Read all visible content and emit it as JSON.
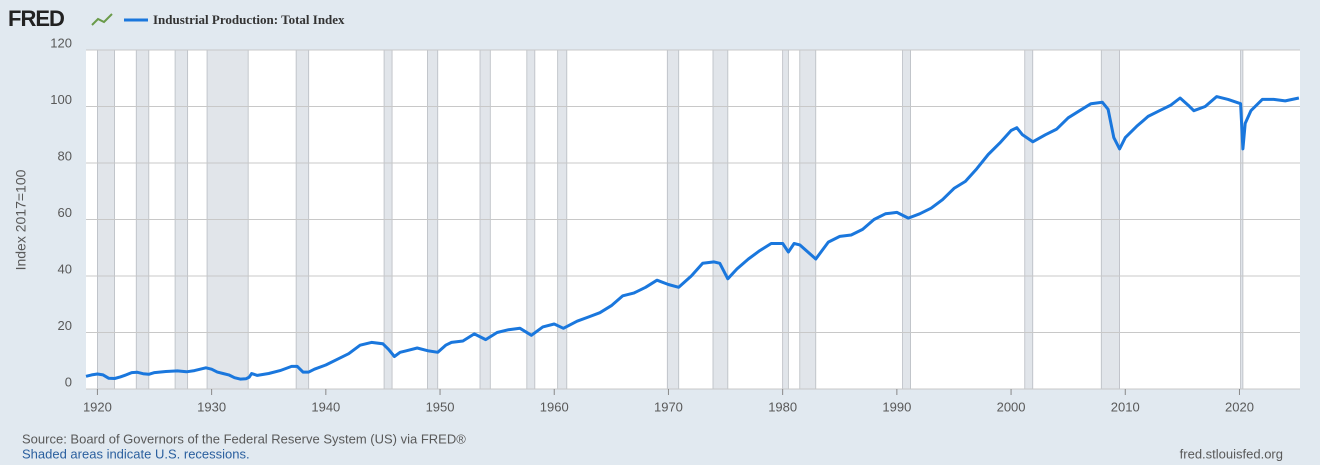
{
  "logo": "FRED",
  "chart_data": {
    "type": "line",
    "y_label": "Index 2017=100",
    "source": "Source: Board of Governors of the Federal Reserve System (US) via FRED®",
    "note": "Shaded areas indicate U.S. recessions.",
    "site": "fred.stlouisfed.org",
    "xlim": [
      1919,
      2025.3
    ],
    "xticks": [
      1920,
      1930,
      1940,
      1950,
      1960,
      1970,
      1980,
      1990,
      2000,
      2010,
      2020
    ],
    "ylim": [
      0,
      120
    ],
    "yticks": [
      0,
      20,
      40,
      60,
      80,
      100,
      120
    ],
    "grid": true,
    "recessions": [
      [
        1920.0,
        1921.5
      ],
      [
        1923.4,
        1924.5
      ],
      [
        1926.8,
        1927.9
      ],
      [
        1929.6,
        1933.2
      ],
      [
        1937.4,
        1938.5
      ],
      [
        1945.1,
        1945.8
      ],
      [
        1948.9,
        1949.8
      ],
      [
        1953.5,
        1954.4
      ],
      [
        1957.6,
        1958.3
      ],
      [
        1960.3,
        1961.1
      ],
      [
        1969.9,
        1970.9
      ],
      [
        1973.9,
        1975.2
      ],
      [
        1980.0,
        1980.5
      ],
      [
        1981.5,
        1982.9
      ],
      [
        1990.5,
        1991.2
      ],
      [
        2001.2,
        2001.9
      ],
      [
        2007.9,
        2009.5
      ],
      [
        2020.1,
        2020.3
      ]
    ],
    "x": [
      1919.0,
      1919.5,
      1920.0,
      1920.5,
      1921.0,
      1921.5,
      1922.0,
      1922.5,
      1923.0,
      1923.5,
      1924.0,
      1924.5,
      1925,
      1926,
      1927,
      1927.8,
      1928.5,
      1929.5,
      1930,
      1930.5,
      1931,
      1931.5,
      1932,
      1932.5,
      1933,
      1933.3,
      1933.5,
      1934,
      1935,
      1936,
      1937,
      1937.5,
      1938,
      1938.5,
      1939,
      1940,
      1941,
      1942,
      1943,
      1944,
      1945,
      1945.5,
      1946,
      1946.5,
      1947,
      1948,
      1949,
      1949.8,
      1950.5,
      1951,
      1952,
      1953,
      1954,
      1955,
      1956,
      1957,
      1958,
      1959,
      1960,
      1960.8,
      1962,
      1963,
      1964,
      1965,
      1966,
      1967,
      1968,
      1969,
      1970,
      1970.9,
      1972,
      1973,
      1974,
      1974.5,
      1975.2,
      1976,
      1977,
      1978,
      1979,
      1980,
      1980.5,
      1981,
      1981.5,
      1982.9,
      1984,
      1985,
      1986,
      1987,
      1988,
      1989,
      1990,
      1991,
      1992,
      1993,
      1994,
      1995,
      1996,
      1997,
      1998,
      1999,
      2000,
      2000.5,
      2001,
      2001.9,
      2003,
      2004,
      2005,
      2006,
      2007,
      2008,
      2008.5,
      2009.0,
      2009.5,
      2010,
      2011,
      2012,
      2013,
      2014,
      2014.8,
      2015.5,
      2016,
      2017,
      2018,
      2019,
      2020.1,
      2020.3,
      2020.5,
      2021,
      2022,
      2023,
      2024,
      2025.2
    ],
    "series": [
      {
        "name": "Industrial Production: Total Index",
        "color": "#1a77dd",
        "values": [
          4.5,
          5,
          5.3,
          5,
          3.8,
          3.7,
          4.3,
          5,
          5.8,
          5.9,
          5.4,
          5.2,
          5.8,
          6.2,
          6.4,
          6.1,
          6.5,
          7.5,
          7,
          6,
          5.5,
          5,
          4,
          3.5,
          3.6,
          4.2,
          5.5,
          4.8,
          5.5,
          6.5,
          8,
          8,
          6,
          6,
          7,
          8.5,
          10.5,
          12.5,
          15.5,
          16.5,
          16,
          14,
          11.5,
          13,
          13.5,
          14.5,
          13.5,
          13,
          15.5,
          16.5,
          17,
          19.5,
          17.5,
          20,
          21,
          21.5,
          19,
          22,
          23,
          21.5,
          24,
          25.5,
          27,
          29.5,
          33,
          34,
          36,
          38.5,
          37,
          36,
          40,
          44.5,
          45,
          44.5,
          39,
          42.5,
          46,
          49,
          51.5,
          51.5,
          48.5,
          51.5,
          51,
          46,
          52,
          54,
          54.5,
          56.5,
          60,
          62,
          62.5,
          60.5,
          62,
          64,
          67,
          71,
          73.5,
          78,
          83,
          87,
          91.5,
          92.5,
          90,
          87.5,
          90,
          92,
          96,
          98.5,
          101,
          101.5,
          99,
          89,
          85,
          89,
          93,
          96.5,
          98.5,
          100.5,
          103,
          100.5,
          98.5,
          100,
          103.5,
          102.5,
          101,
          85,
          94,
          98.5,
          102.5,
          102.5,
          102,
          103
        ]
      }
    ]
  }
}
